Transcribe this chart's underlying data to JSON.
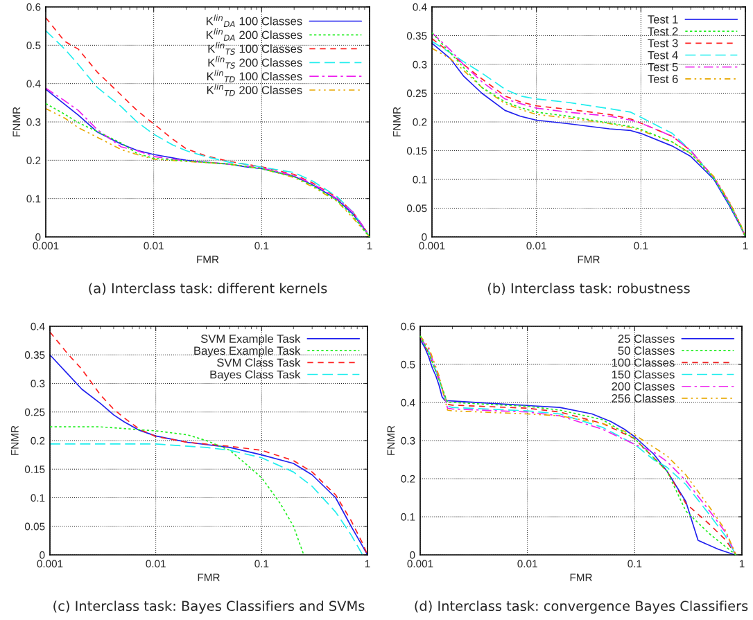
{
  "chart_data": [
    {
      "type": "line",
      "title": "(a) Interclass task: different kernels",
      "xlabel": "FMR",
      "ylabel": "FNMR",
      "log": "x",
      "grid": true,
      "legend": "top right",
      "xlim": [
        0.001,
        1
      ],
      "xticks": [
        0.001,
        0.01,
        0.1,
        1
      ],
      "ylim": [
        0,
        0.6
      ],
      "yticks": [
        0,
        0.1,
        0.2,
        0.3,
        0.4,
        0.5,
        0.6
      ],
      "series": [
        {
          "name": "K$^{lin}$$_{DA}$ 100 Classes",
          "color": "#2020ee",
          "line_style": "solid",
          "x": [
            0.001,
            0.002,
            0.003,
            0.005,
            0.007,
            0.01,
            0.02,
            0.03,
            0.05,
            0.07,
            0.1,
            0.2,
            0.3,
            0.5,
            0.7,
            0.9,
            1
          ],
          "values": [
            0.385,
            0.318,
            0.274,
            0.242,
            0.226,
            0.215,
            0.2,
            0.195,
            0.19,
            0.183,
            0.178,
            0.158,
            0.135,
            0.098,
            0.06,
            0.02,
            0
          ]
        },
        {
          "name": "K$^{lin}$$_{DA}$ 200 Classes",
          "color": "#22ee22",
          "line_style": "dotted",
          "x": [
            0.001,
            0.0015,
            0.002,
            0.003,
            0.005,
            0.007,
            0.01,
            0.02,
            0.05,
            0.1,
            0.2,
            0.3,
            0.5,
            0.7,
            0.9,
            1
          ],
          "values": [
            0.348,
            0.32,
            0.298,
            0.275,
            0.245,
            0.218,
            0.205,
            0.198,
            0.19,
            0.178,
            0.157,
            0.133,
            0.095,
            0.055,
            0.015,
            0
          ]
        },
        {
          "name": "K$^{lin}$$_{TS}$ 100 Classes",
          "color": "#ff2020",
          "line_style": "dashed",
          "x": [
            0.001,
            0.0015,
            0.002,
            0.003,
            0.005,
            0.007,
            0.01,
            0.015,
            0.02,
            0.03,
            0.05,
            0.07,
            0.1,
            0.2,
            0.3,
            0.5,
            0.7,
            0.9,
            1
          ],
          "values": [
            0.572,
            0.51,
            0.49,
            0.43,
            0.37,
            0.33,
            0.295,
            0.255,
            0.23,
            0.212,
            0.197,
            0.19,
            0.183,
            0.163,
            0.14,
            0.103,
            0.065,
            0.022,
            0
          ]
        },
        {
          "name": "K$^{lin}$$_{TS}$ 200 Classes",
          "color": "#20eeee",
          "line_style": "longdash",
          "x": [
            0.001,
            0.0015,
            0.002,
            0.003,
            0.005,
            0.007,
            0.01,
            0.015,
            0.02,
            0.03,
            0.05,
            0.07,
            0.1,
            0.2,
            0.3,
            0.5,
            0.7,
            0.9,
            1
          ],
          "values": [
            0.538,
            0.49,
            0.45,
            0.39,
            0.34,
            0.3,
            0.268,
            0.24,
            0.225,
            0.21,
            0.195,
            0.19,
            0.182,
            0.168,
            0.145,
            0.105,
            0.065,
            0.022,
            0
          ]
        },
        {
          "name": "K$^{lin}$$_{TD}$ 100 Classes",
          "color": "#ee20ee",
          "line_style": "dashdot",
          "x": [
            0.001,
            0.0015,
            0.002,
            0.003,
            0.005,
            0.007,
            0.01,
            0.02,
            0.05,
            0.1,
            0.2,
            0.3,
            0.5,
            0.7,
            0.9,
            1
          ],
          "values": [
            0.388,
            0.355,
            0.33,
            0.28,
            0.235,
            0.225,
            0.21,
            0.198,
            0.19,
            0.18,
            0.16,
            0.138,
            0.1,
            0.065,
            0.022,
            0
          ]
        },
        {
          "name": "K$^{lin}$$_{TD}$ 200 Classes",
          "color": "#e8a800",
          "line_style": "dashdotdot",
          "x": [
            0.001,
            0.0015,
            0.002,
            0.003,
            0.005,
            0.007,
            0.01,
            0.02,
            0.05,
            0.1,
            0.2,
            0.3,
            0.5,
            0.7,
            0.9,
            1
          ],
          "values": [
            0.335,
            0.31,
            0.285,
            0.26,
            0.228,
            0.215,
            0.203,
            0.197,
            0.19,
            0.178,
            0.155,
            0.13,
            0.093,
            0.05,
            0.015,
            0
          ]
        }
      ]
    },
    {
      "type": "line",
      "title": "(b) Interclass task: robustness",
      "xlabel": "FMR",
      "ylabel": "FNMR",
      "log": "x",
      "grid": true,
      "legend": "top right",
      "xlim": [
        0.001,
        1
      ],
      "xticks": [
        0.001,
        0.01,
        0.1,
        1
      ],
      "ylim": [
        0,
        0.4
      ],
      "yticks": [
        0,
        0.05,
        0.1,
        0.15,
        0.2,
        0.25,
        0.3,
        0.35,
        0.4
      ],
      "series": [
        {
          "name": "Test 1",
          "color": "#2020ee",
          "line_style": "solid",
          "x": [
            0.001,
            0.0015,
            0.002,
            0.003,
            0.005,
            0.007,
            0.01,
            0.02,
            0.05,
            0.08,
            0.1,
            0.2,
            0.3,
            0.5,
            0.7,
            0.9,
            1
          ],
          "values": [
            0.337,
            0.31,
            0.28,
            0.25,
            0.22,
            0.21,
            0.203,
            0.197,
            0.188,
            0.185,
            0.18,
            0.158,
            0.14,
            0.1,
            0.055,
            0.018,
            0
          ]
        },
        {
          "name": "Test 2",
          "color": "#22ee22",
          "line_style": "dotted",
          "x": [
            0.001,
            0.0015,
            0.002,
            0.003,
            0.005,
            0.007,
            0.01,
            0.02,
            0.05,
            0.08,
            0.1,
            0.2,
            0.3,
            0.5,
            0.7,
            0.9,
            1
          ],
          "values": [
            0.355,
            0.32,
            0.295,
            0.26,
            0.235,
            0.225,
            0.217,
            0.21,
            0.198,
            0.192,
            0.187,
            0.165,
            0.145,
            0.102,
            0.058,
            0.02,
            0
          ]
        },
        {
          "name": "Test 3",
          "color": "#ff2020",
          "line_style": "dashed",
          "x": [
            0.001,
            0.0015,
            0.002,
            0.003,
            0.005,
            0.007,
            0.01,
            0.02,
            0.05,
            0.08,
            0.1,
            0.2,
            0.3,
            0.5,
            0.7,
            0.9,
            1
          ],
          "values": [
            0.345,
            0.32,
            0.3,
            0.275,
            0.245,
            0.235,
            0.228,
            0.222,
            0.213,
            0.205,
            0.198,
            0.175,
            0.15,
            0.103,
            0.06,
            0.02,
            0
          ]
        },
        {
          "name": "Test 4",
          "color": "#20eeee",
          "line_style": "longdash",
          "x": [
            0.001,
            0.0015,
            0.002,
            0.003,
            0.005,
            0.007,
            0.01,
            0.02,
            0.05,
            0.08,
            0.1,
            0.2,
            0.3,
            0.5,
            0.7,
            0.9,
            1
          ],
          "values": [
            0.34,
            0.32,
            0.305,
            0.285,
            0.257,
            0.245,
            0.24,
            0.234,
            0.223,
            0.217,
            0.208,
            0.18,
            0.15,
            0.102,
            0.058,
            0.02,
            0
          ]
        },
        {
          "name": "Test 5",
          "color": "#ee20ee",
          "line_style": "dashdot",
          "x": [
            0.001,
            0.0015,
            0.002,
            0.003,
            0.005,
            0.007,
            0.01,
            0.02,
            0.05,
            0.08,
            0.1,
            0.2,
            0.3,
            0.5,
            0.7,
            0.9,
            1
          ],
          "values": [
            0.355,
            0.325,
            0.3,
            0.27,
            0.24,
            0.232,
            0.224,
            0.217,
            0.21,
            0.203,
            0.198,
            0.175,
            0.15,
            0.103,
            0.06,
            0.02,
            0
          ]
        },
        {
          "name": "Test 6",
          "color": "#e8a800",
          "line_style": "dashdotdot",
          "x": [
            0.001,
            0.0015,
            0.002,
            0.003,
            0.005,
            0.007,
            0.01,
            0.02,
            0.05,
            0.08,
            0.1,
            0.2,
            0.3,
            0.5,
            0.7,
            0.9,
            1
          ],
          "values": [
            0.328,
            0.31,
            0.29,
            0.26,
            0.232,
            0.222,
            0.213,
            0.207,
            0.197,
            0.19,
            0.185,
            0.165,
            0.145,
            0.105,
            0.062,
            0.022,
            0
          ]
        }
      ]
    },
    {
      "type": "line",
      "title": "(c) Interclass task: Bayes Classifiers and SVMs",
      "xlabel": "FMR",
      "ylabel": "FNMR",
      "log": "x",
      "grid": true,
      "legend": "top right",
      "xlim": [
        0.001,
        1
      ],
      "xticks": [
        0.001,
        0.01,
        0.1,
        1
      ],
      "ylim": [
        0,
        0.4
      ],
      "yticks": [
        0,
        0.05,
        0.1,
        0.15,
        0.2,
        0.25,
        0.3,
        0.35,
        0.4
      ],
      "series": [
        {
          "name": "SVM Example Task",
          "color": "#2020ee",
          "line_style": "solid",
          "x": [
            0.001,
            0.0015,
            0.002,
            0.003,
            0.004,
            0.005,
            0.007,
            0.01,
            0.02,
            0.05,
            0.1,
            0.2,
            0.3,
            0.5,
            0.7,
            0.9,
            1
          ],
          "values": [
            0.35,
            0.315,
            0.29,
            0.265,
            0.245,
            0.233,
            0.218,
            0.208,
            0.197,
            0.188,
            0.175,
            0.16,
            0.14,
            0.1,
            0.05,
            0.015,
            0
          ]
        },
        {
          "name": "Bayes Example Task",
          "color": "#22ee22",
          "line_style": "dotted",
          "x": [
            0.001,
            0.003,
            0.01,
            0.02,
            0.03,
            0.05,
            0.07,
            0.1,
            0.15,
            0.2,
            0.25
          ],
          "values": [
            0.224,
            0.224,
            0.217,
            0.21,
            0.2,
            0.183,
            0.16,
            0.135,
            0.09,
            0.05,
            0
          ]
        },
        {
          "name": "SVM Class Task",
          "color": "#ff2020",
          "line_style": "dashed",
          "x": [
            0.001,
            0.0015,
            0.002,
            0.003,
            0.004,
            0.005,
            0.007,
            0.01,
            0.02,
            0.05,
            0.1,
            0.2,
            0.3,
            0.5,
            0.7,
            0.9,
            1
          ],
          "values": [
            0.39,
            0.35,
            0.325,
            0.28,
            0.255,
            0.24,
            0.22,
            0.207,
            0.197,
            0.19,
            0.183,
            0.165,
            0.145,
            0.105,
            0.06,
            0.02,
            0
          ]
        },
        {
          "name": "Bayes Class Task",
          "color": "#20eeee",
          "line_style": "longdash",
          "x": [
            0.001,
            0.01,
            0.03,
            0.05,
            0.1,
            0.2,
            0.3,
            0.5,
            0.7,
            0.9
          ],
          "values": [
            0.194,
            0.194,
            0.188,
            0.183,
            0.17,
            0.145,
            0.12,
            0.075,
            0.035,
            0
          ]
        }
      ]
    },
    {
      "type": "line",
      "title": "(d) Interclass task: convergence Bayes Classifiers",
      "xlabel": "FMR",
      "ylabel": "FNMR",
      "log": "x",
      "grid": true,
      "legend": "top right",
      "xlim": [
        0.001,
        1
      ],
      "xticks": [
        0.001,
        0.01,
        0.1,
        1
      ],
      "ylim": [
        0,
        0.6
      ],
      "yticks": [
        0,
        0.1,
        0.2,
        0.3,
        0.4,
        0.5,
        0.6
      ],
      "series": [
        {
          "name": "25 Classes",
          "color": "#2020ee",
          "line_style": "solid",
          "x": [
            0.001,
            0.0011,
            0.0012,
            0.0013,
            0.0014,
            0.0015,
            0.0016,
            0.0017,
            0.002,
            0.005,
            0.01,
            0.02,
            0.04,
            0.06,
            0.08,
            0.1,
            0.15,
            0.2,
            0.3,
            0.39,
            0.6,
            0.86
          ],
          "values": [
            0.565,
            0.545,
            0.52,
            0.49,
            0.47,
            0.445,
            0.415,
            0.405,
            0.404,
            0.397,
            0.392,
            0.387,
            0.37,
            0.35,
            0.33,
            0.31,
            0.265,
            0.22,
            0.14,
            0.038,
            0.015,
            0
          ]
        },
        {
          "name": "50 Classes",
          "color": "#22ee22",
          "line_style": "dotted",
          "x": [
            0.001,
            0.0012,
            0.0015,
            0.0018,
            0.002,
            0.01,
            0.02,
            0.05,
            0.1,
            0.2,
            0.3,
            0.5,
            0.88
          ],
          "values": [
            0.575,
            0.53,
            0.46,
            0.4,
            0.4,
            0.39,
            0.38,
            0.355,
            0.305,
            0.22,
            0.115,
            0.055,
            0
          ]
        },
        {
          "name": "100 Classes",
          "color": "#ee2020",
          "line_style": "dashed",
          "x": [
            0.001,
            0.0012,
            0.0015,
            0.0018,
            0.002,
            0.01,
            0.02,
            0.05,
            0.1,
            0.2,
            0.3,
            0.5,
            0.7,
            0.88
          ],
          "values": [
            0.57,
            0.53,
            0.46,
            0.395,
            0.393,
            0.385,
            0.375,
            0.345,
            0.305,
            0.22,
            0.135,
            0.08,
            0.04,
            0
          ]
        },
        {
          "name": "150 Classes",
          "color": "#20eeee",
          "line_style": "longdash",
          "x": [
            0.001,
            0.0012,
            0.0015,
            0.0018,
            0.002,
            0.01,
            0.02,
            0.05,
            0.1,
            0.15,
            0.2,
            0.3,
            0.5,
            0.7,
            0.88
          ],
          "values": [
            0.57,
            0.535,
            0.46,
            0.39,
            0.387,
            0.378,
            0.37,
            0.335,
            0.29,
            0.25,
            0.23,
            0.185,
            0.105,
            0.05,
            0
          ]
        },
        {
          "name": "200 Classes",
          "color": "#ee20ee",
          "line_style": "dashdot",
          "x": [
            0.001,
            0.0012,
            0.0015,
            0.0018,
            0.002,
            0.01,
            0.02,
            0.05,
            0.1,
            0.15,
            0.2,
            0.3,
            0.5,
            0.7,
            0.88
          ],
          "values": [
            0.57,
            0.54,
            0.465,
            0.385,
            0.383,
            0.375,
            0.365,
            0.33,
            0.29,
            0.27,
            0.245,
            0.195,
            0.115,
            0.06,
            0
          ]
        },
        {
          "name": "256 Classes",
          "color": "#e8a800",
          "line_style": "dashdotdot",
          "x": [
            0.001,
            0.0012,
            0.0015,
            0.0018,
            0.002,
            0.01,
            0.02,
            0.05,
            0.1,
            0.2,
            0.3,
            0.5,
            0.7,
            0.88
          ],
          "values": [
            0.575,
            0.545,
            0.47,
            0.38,
            0.378,
            0.37,
            0.365,
            0.345,
            0.315,
            0.26,
            0.21,
            0.125,
            0.065,
            0
          ]
        }
      ]
    }
  ]
}
